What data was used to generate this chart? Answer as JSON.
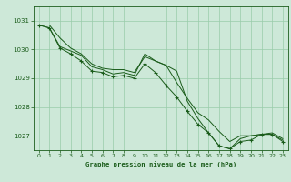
{
  "bg_color": "#cde8d8",
  "grid_color": "#99ccaa",
  "line_color": "#1a5c1a",
  "marker_color": "#1a5c1a",
  "xlabel": "Graphe pression niveau de la mer (hPa)",
  "xlabel_color": "#1a5c1a",
  "tick_color": "#1a5c1a",
  "ylim": [
    1026.5,
    1031.5
  ],
  "xlim": [
    -0.5,
    23.5
  ],
  "yticks": [
    1027,
    1028,
    1029,
    1030,
    1031
  ],
  "xticks": [
    0,
    1,
    2,
    3,
    4,
    5,
    6,
    7,
    8,
    9,
    10,
    11,
    12,
    13,
    14,
    15,
    16,
    17,
    18,
    19,
    20,
    21,
    22,
    23
  ],
  "series_plain": [
    [
      1030.85,
      1030.85,
      1030.4,
      1030.05,
      1029.85,
      1029.5,
      1029.35,
      1029.3,
      1029.3,
      1029.2,
      1029.75,
      1029.6,
      1029.45,
      1028.85,
      1028.3,
      1027.8,
      1027.55,
      1027.15,
      1026.8,
      1027.0,
      1027.0,
      1027.05,
      1027.1,
      1026.9
    ],
    [
      1030.85,
      1030.75,
      1030.1,
      1029.95,
      1029.8,
      1029.4,
      1029.3,
      1029.15,
      1029.2,
      1029.1,
      1029.85,
      1029.6,
      1029.45,
      1029.25,
      1028.2,
      1027.6,
      1027.1,
      1026.65,
      1026.55,
      1026.9,
      1027.0,
      1027.05,
      1027.05,
      1026.85
    ]
  ],
  "series_marker": [
    [
      1030.85,
      1030.75,
      1030.05,
      1029.85,
      1029.6,
      1029.25,
      1029.2,
      1029.05,
      1029.1,
      1029.0,
      1029.5,
      1029.2,
      1028.75,
      1028.35,
      1027.85,
      1027.4,
      1027.1,
      1026.65,
      1026.55,
      1026.8,
      1026.85,
      1027.05,
      1027.05,
      1026.8
    ]
  ]
}
